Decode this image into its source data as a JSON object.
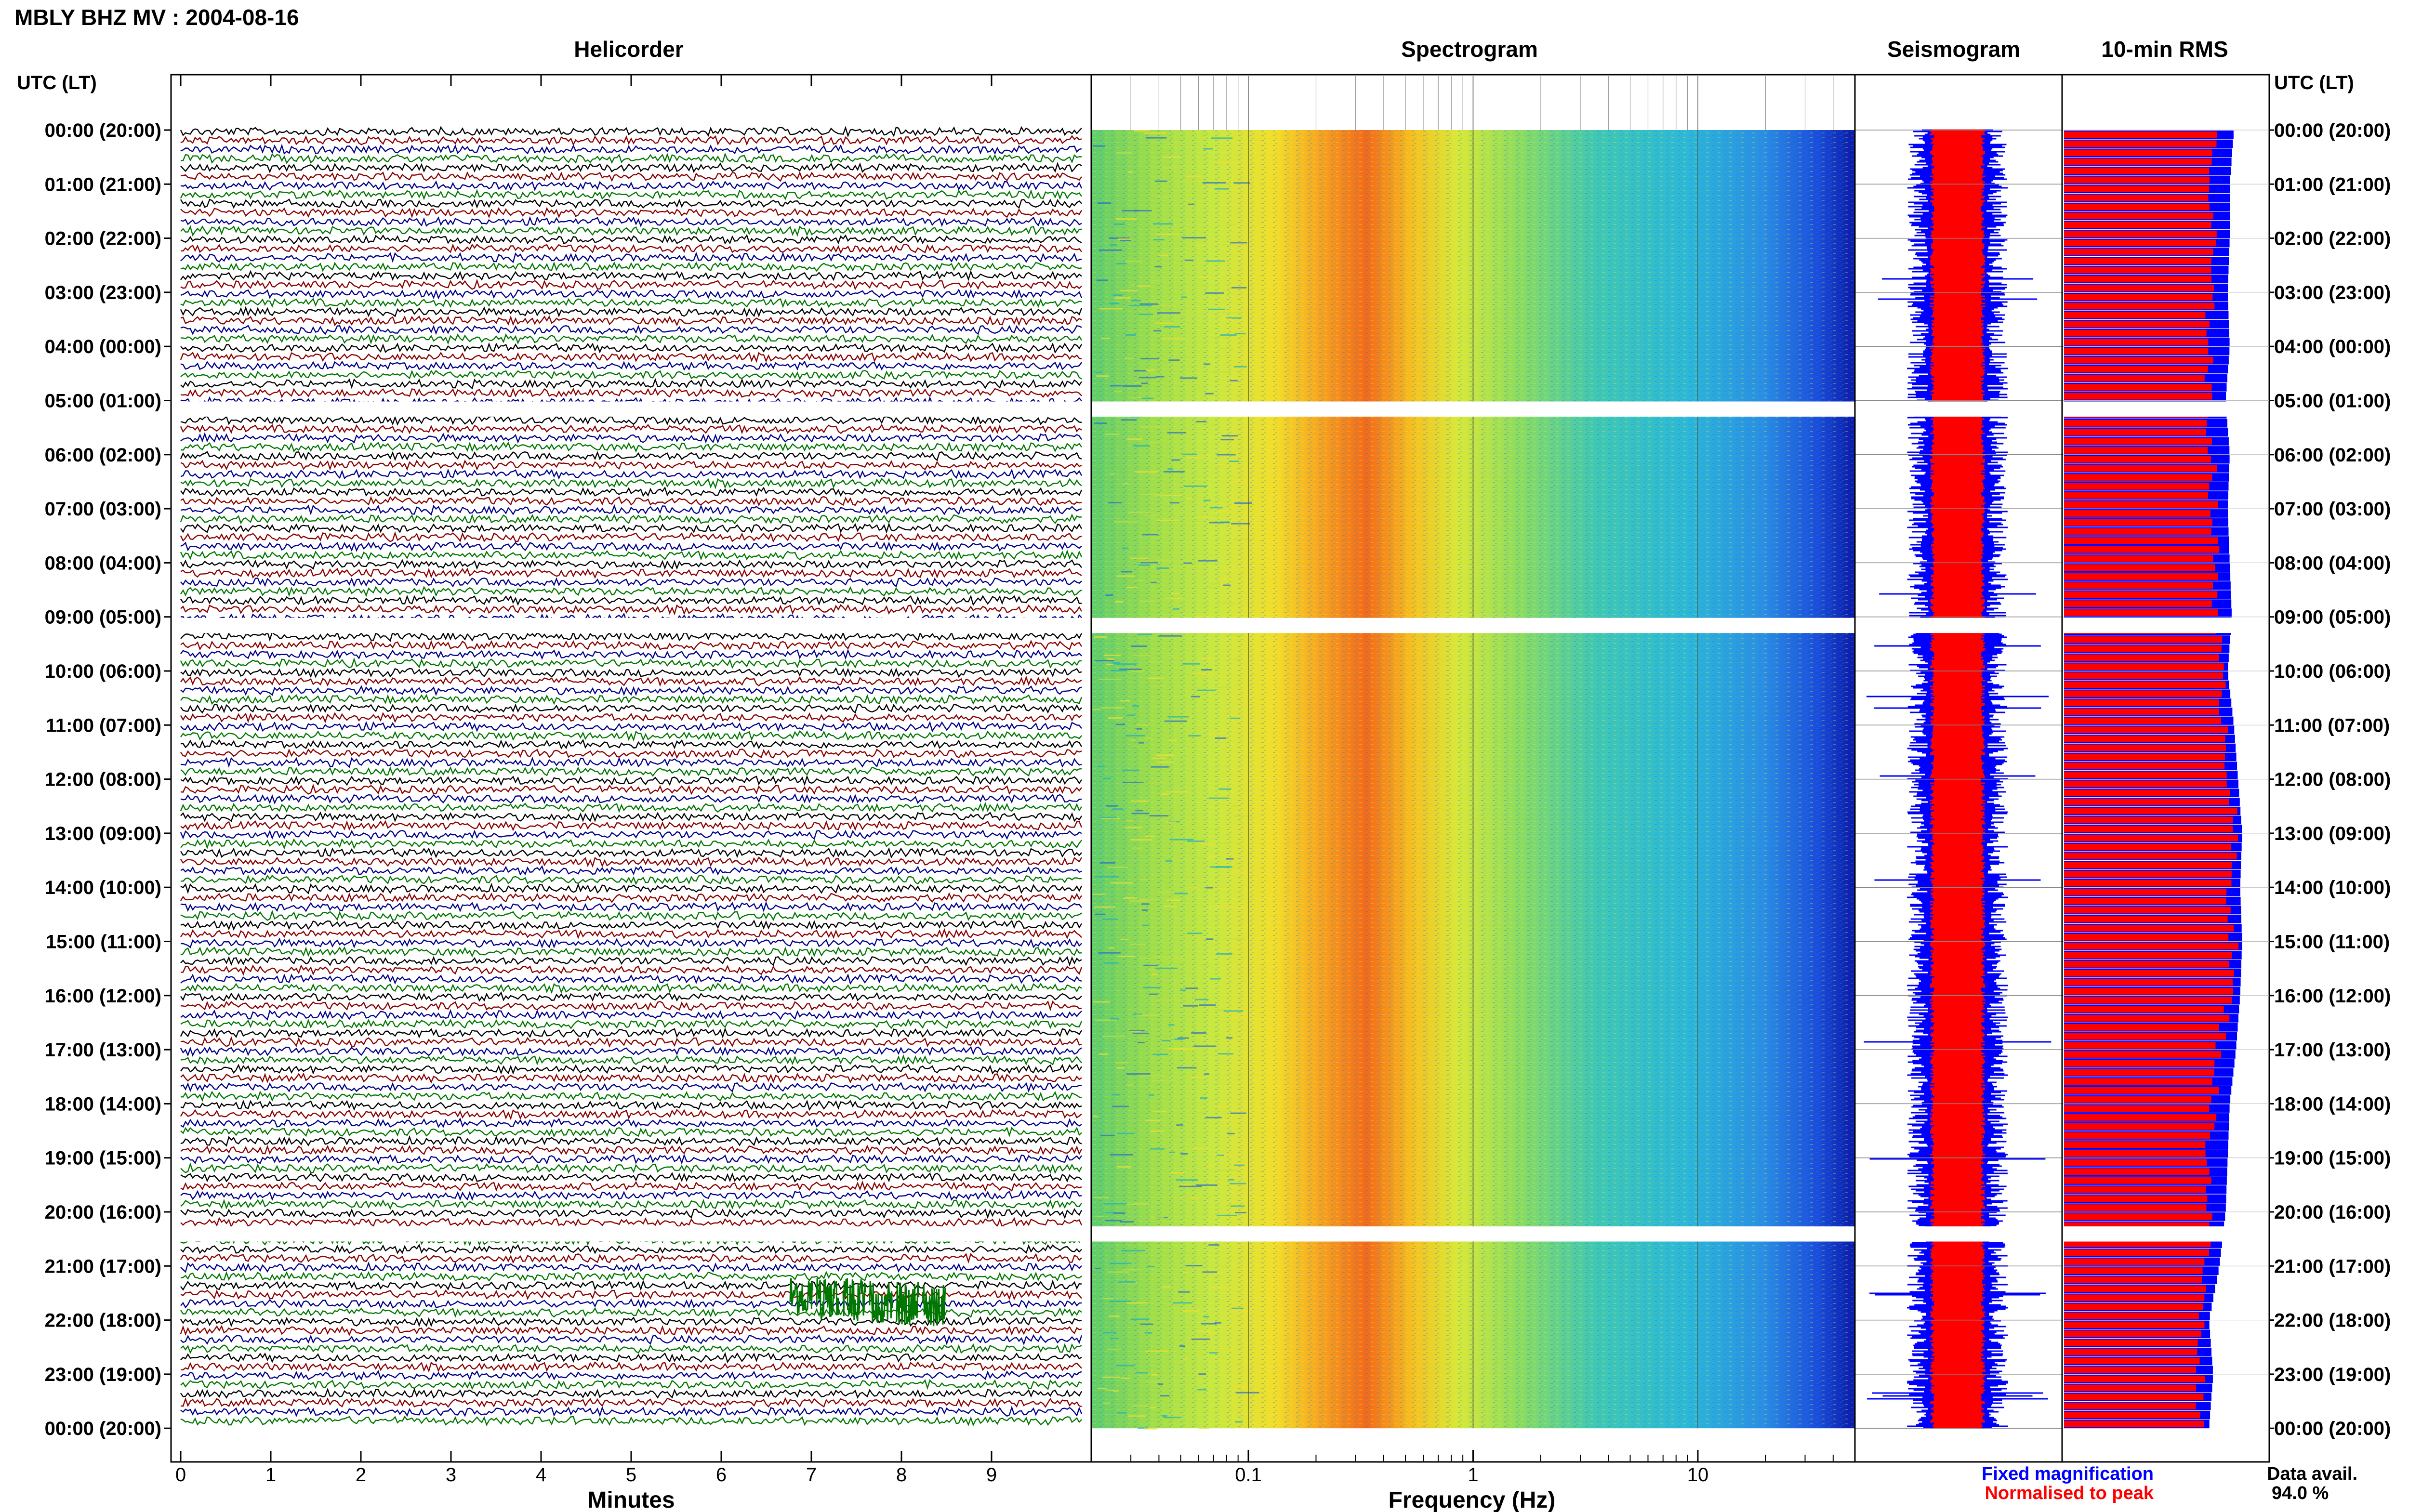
{
  "header": {
    "title": "MBLY BHZ MV : 2004-08-16",
    "utc_label_left": "UTC (LT)",
    "utc_label_right": "UTC (LT)"
  },
  "panels": {
    "helicorder": "Helicorder",
    "spectrogram": "Spectrogram",
    "seismogram": "Seismogram",
    "rms": "10-min RMS"
  },
  "time_labels": [
    "00:00 (20:00)",
    "01:00 (21:00)",
    "02:00 (22:00)",
    "03:00 (23:00)",
    "04:00 (00:00)",
    "05:00 (01:00)",
    "06:00 (02:00)",
    "07:00 (03:00)",
    "08:00 (04:00)",
    "09:00 (05:00)",
    "10:00 (06:00)",
    "11:00 (07:00)",
    "12:00 (08:00)",
    "13:00 (09:00)",
    "14:00 (10:00)",
    "15:00 (11:00)",
    "16:00 (12:00)",
    "17:00 (13:00)",
    "18:00 (14:00)",
    "19:00 (15:00)",
    "20:00 (16:00)",
    "21:00 (17:00)",
    "22:00 (18:00)",
    "23:00 (19:00)",
    "00:00 (20:00)"
  ],
  "helicorder_axis": {
    "xlabel": "Minutes",
    "ticks": [
      "0",
      "1",
      "2",
      "3",
      "4",
      "5",
      "6",
      "7",
      "8",
      "9"
    ],
    "xlim": [
      0,
      10
    ],
    "trace_colors": [
      "#000000",
      "#8b0000",
      "#00008b",
      "#007700"
    ]
  },
  "spectrogram_axis": {
    "xlabel": "Frequency (Hz)",
    "ticks": [
      "0.1",
      "1",
      "10"
    ],
    "tick_values": [
      0.1,
      1,
      10
    ],
    "xlim": [
      0.02,
      50
    ],
    "scale": "log"
  },
  "legend": {
    "fixed": "Fixed magnification",
    "fixed_color": "#0000ff",
    "normalised": "Normalised to peak",
    "normalised_color": "#ff0000",
    "availability_label": "Data avail.",
    "availability_value": "94.0 %"
  },
  "data_gaps_utc_hours": [
    5,
    9,
    20.25
  ],
  "chart_data": {
    "type": "heatmap",
    "title": "MBLY BHZ MV : 2004-08-16",
    "hours_utc": [
      0,
      1,
      2,
      3,
      4,
      5,
      6,
      7,
      8,
      9,
      10,
      11,
      12,
      13,
      14,
      15,
      16,
      17,
      18,
      19,
      20,
      21,
      22,
      23,
      24
    ],
    "rms_10min_fixed": [
      0.82,
      0.8,
      0.8,
      0.79,
      0.8,
      0.78,
      0.8,
      0.79,
      0.8,
      0.81,
      0.79,
      0.82,
      0.84,
      0.86,
      0.85,
      0.86,
      0.85,
      0.83,
      0.8,
      0.79,
      0.78,
      0.75,
      0.7,
      0.72,
      0.7
    ],
    "rms_10min_normalised": [
      0.72,
      0.7,
      0.72,
      0.7,
      0.71,
      0.69,
      0.72,
      0.72,
      0.73,
      0.74,
      0.75,
      0.78,
      0.8,
      0.82,
      0.8,
      0.82,
      0.8,
      0.75,
      0.72,
      0.7,
      0.7,
      0.68,
      0.66,
      0.66,
      0.66
    ],
    "spectrogram_peak_band_hz": [
      0.2,
      0.6
    ],
    "data_availability_percent": 94.0
  }
}
